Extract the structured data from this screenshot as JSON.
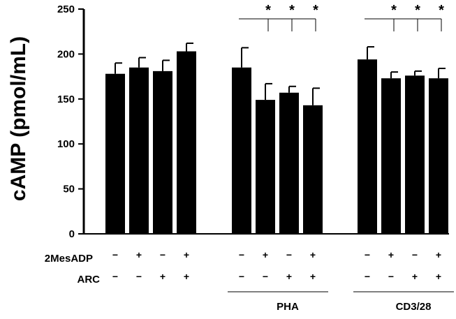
{
  "chart_data": {
    "type": "bar",
    "title": "",
    "xlabel": "",
    "ylabel": "cAMP (pmol/mL)",
    "ylim": [
      0,
      250
    ],
    "yticks": [
      0,
      50,
      100,
      150,
      200,
      250
    ],
    "bar_color": "#000000",
    "groups": [
      {
        "label": "",
        "bars": [
          {
            "value": 178,
            "error": 12,
            "mesadp": "−",
            "arc": "−"
          },
          {
            "value": 185,
            "error": 11,
            "mesadp": "+",
            "arc": "−"
          },
          {
            "value": 181,
            "error": 12,
            "mesadp": "−",
            "arc": "+"
          },
          {
            "value": 203,
            "error": 9,
            "mesadp": "+",
            "arc": "+"
          }
        ]
      },
      {
        "label": "PHA",
        "bars": [
          {
            "value": 185,
            "error": 22,
            "mesadp": "−",
            "arc": "−"
          },
          {
            "value": 149,
            "error": 18,
            "mesadp": "+",
            "arc": "−"
          },
          {
            "value": 157,
            "error": 7,
            "mesadp": "−",
            "arc": "+"
          },
          {
            "value": 143,
            "error": 19,
            "mesadp": "+",
            "arc": "+"
          }
        ],
        "significance": [
          "*",
          "*",
          "*"
        ]
      },
      {
        "label": "CD3/28",
        "bars": [
          {
            "value": 194,
            "error": 14,
            "mesadp": "−",
            "arc": "−"
          },
          {
            "value": 173,
            "error": 7,
            "mesadp": "+",
            "arc": "−"
          },
          {
            "value": 176,
            "error": 5,
            "mesadp": "−",
            "arc": "+"
          },
          {
            "value": 173,
            "error": 11,
            "mesadp": "+",
            "arc": "+"
          }
        ],
        "significance": [
          "*",
          "*",
          "*"
        ]
      }
    ],
    "row_labels": {
      "mesadp": "2MesADP",
      "arc": "ARC"
    }
  }
}
